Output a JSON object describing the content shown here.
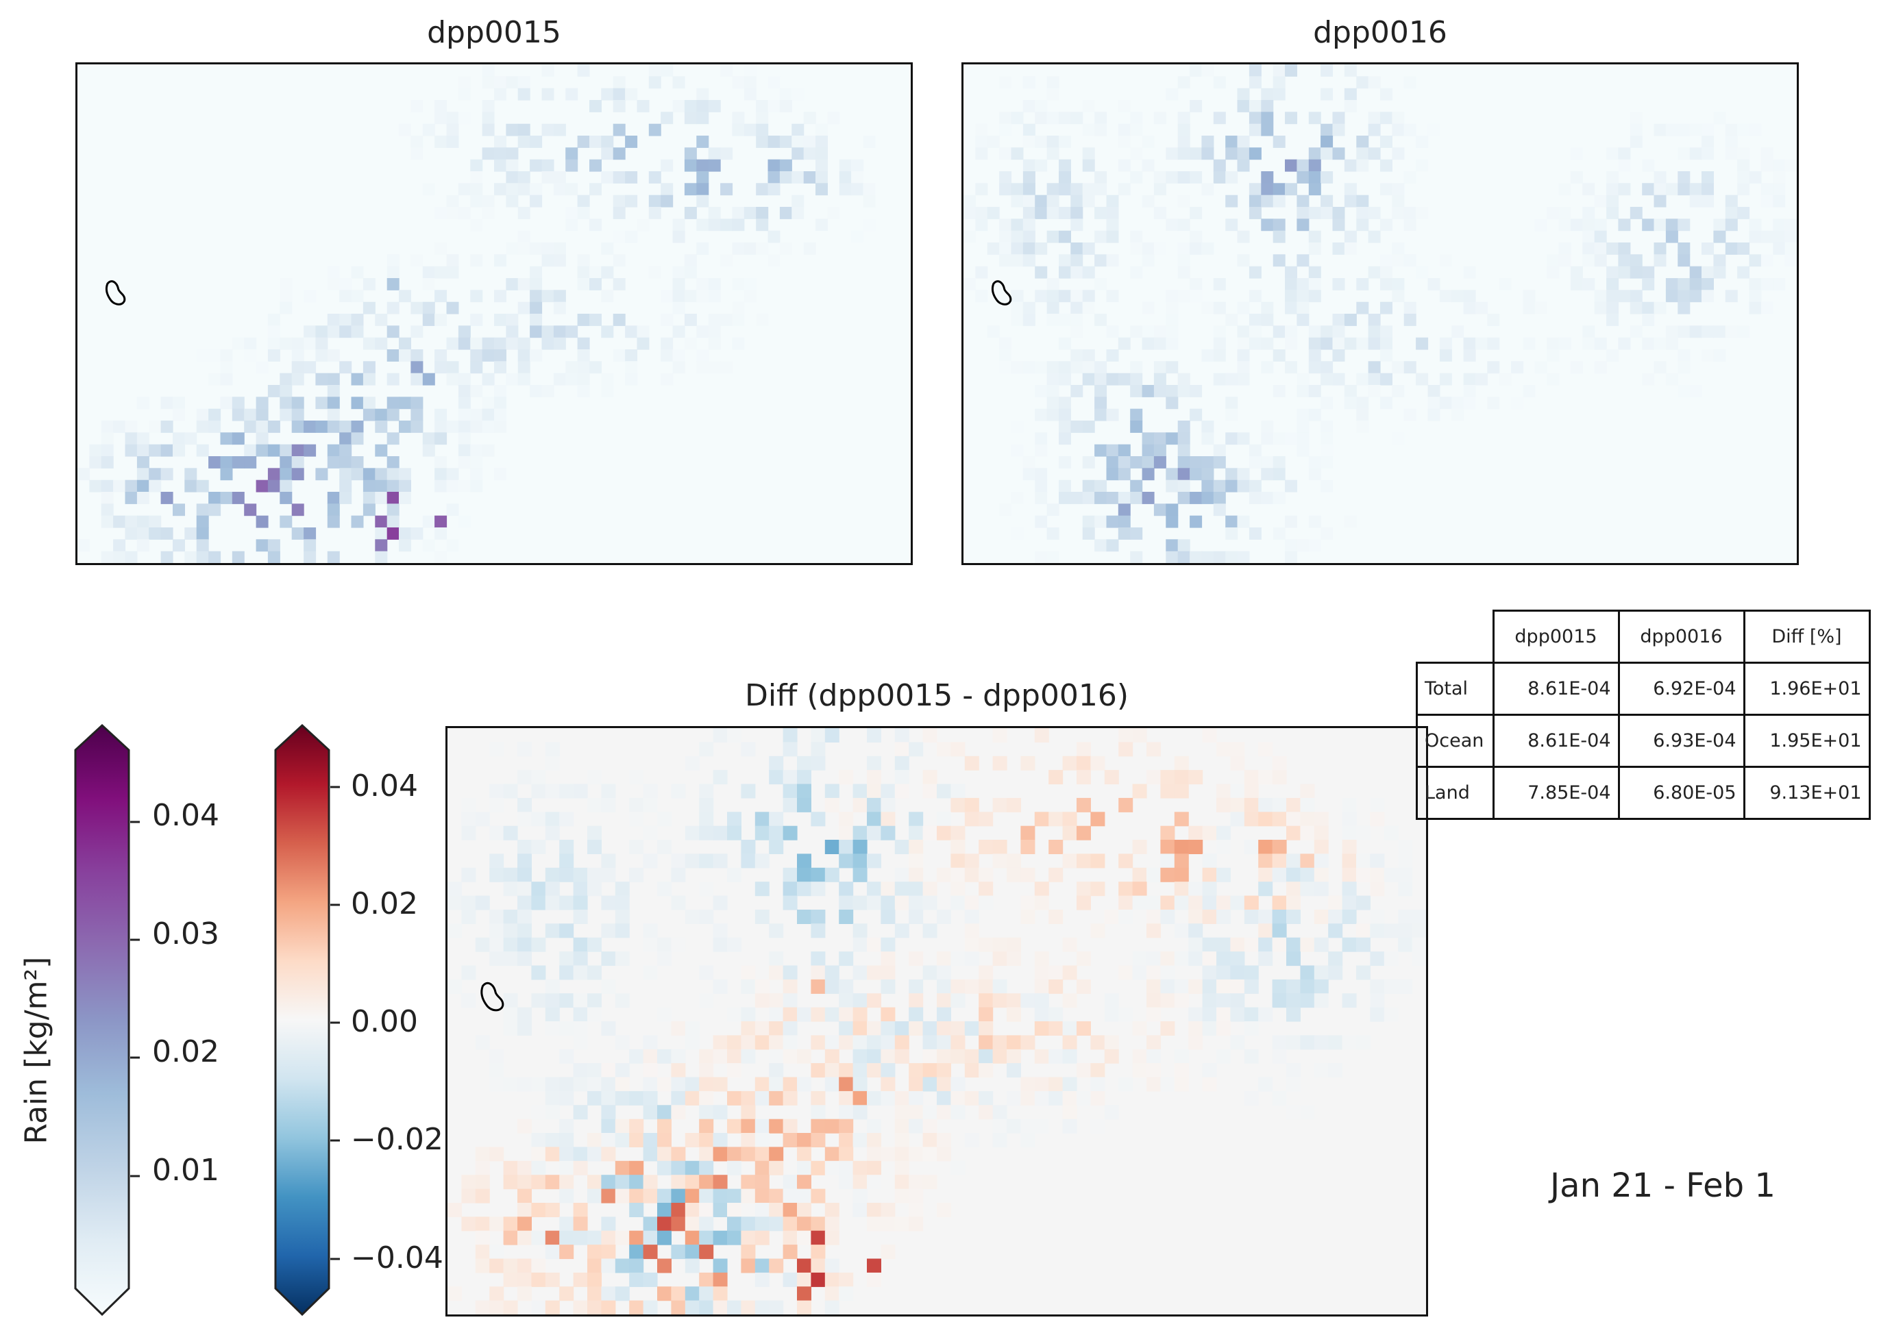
{
  "chart_data": [
    {
      "type": "heatmap",
      "title": "dpp0015",
      "colormap": "BuPu",
      "value_range": [
        0,
        0.045
      ],
      "description_of_field": "sparse light-blue rain cells, heavier in the lower-left and upper-centre-right, a few purple maxima near the bottom-left"
    },
    {
      "type": "heatmap",
      "title": "dpp0016",
      "colormap": "BuPu",
      "value_range": [
        0,
        0.045
      ],
      "description_of_field": "sparse light-blue rain cells, clustered upper-centre and lower-left"
    },
    {
      "type": "heatmap",
      "title": "Diff (dpp0015 - dpp0016)",
      "colormap": "RdBu_r",
      "value_range": [
        -0.045,
        0.045
      ],
      "description_of_field": "mostly near-zero, positive (red) streaks centre-right and lower-left, negative (blue) patches upper-centre and left"
    },
    {
      "type": "table",
      "columns": [
        "",
        "dpp0015",
        "dpp0016",
        "Diff [%]"
      ],
      "rows": [
        [
          "Total",
          "8.61E-04",
          "6.92E-04",
          "1.96E+01"
        ],
        [
          "Ocean",
          "8.61E-04",
          "6.93E-04",
          "1.95E+01"
        ],
        [
          "Land",
          "7.85E-04",
          "6.80E-05",
          "9.13E+01"
        ]
      ]
    }
  ],
  "colorbars": {
    "rain": {
      "label": "Rain [kg/m²]",
      "ticks": [
        "0.01",
        "0.02",
        "0.03",
        "0.04"
      ],
      "tick_values": [
        0.01,
        0.02,
        0.03,
        0.04
      ],
      "range": [
        0,
        0.045
      ],
      "colors": [
        "#f7fcfd",
        "#e0ecf4",
        "#bfd3e6",
        "#9ebcda",
        "#8c96c6",
        "#8c6bb1",
        "#88419d",
        "#810f7c",
        "#4d004b"
      ]
    },
    "diff": {
      "ticks": [
        "0.04",
        "0.02",
        "0.00",
        "−0.02",
        "−0.04"
      ],
      "tick_values": [
        0.04,
        0.02,
        0.0,
        -0.02,
        -0.04
      ],
      "range": [
        -0.045,
        0.045
      ],
      "colors": [
        "#053061",
        "#2166ac",
        "#4393c3",
        "#92c5de",
        "#d1e5f0",
        "#f7f7f7",
        "#fddbc7",
        "#f4a582",
        "#d6604d",
        "#b2182b",
        "#67001f"
      ]
    }
  },
  "period": "Jan 21 - Feb  1"
}
